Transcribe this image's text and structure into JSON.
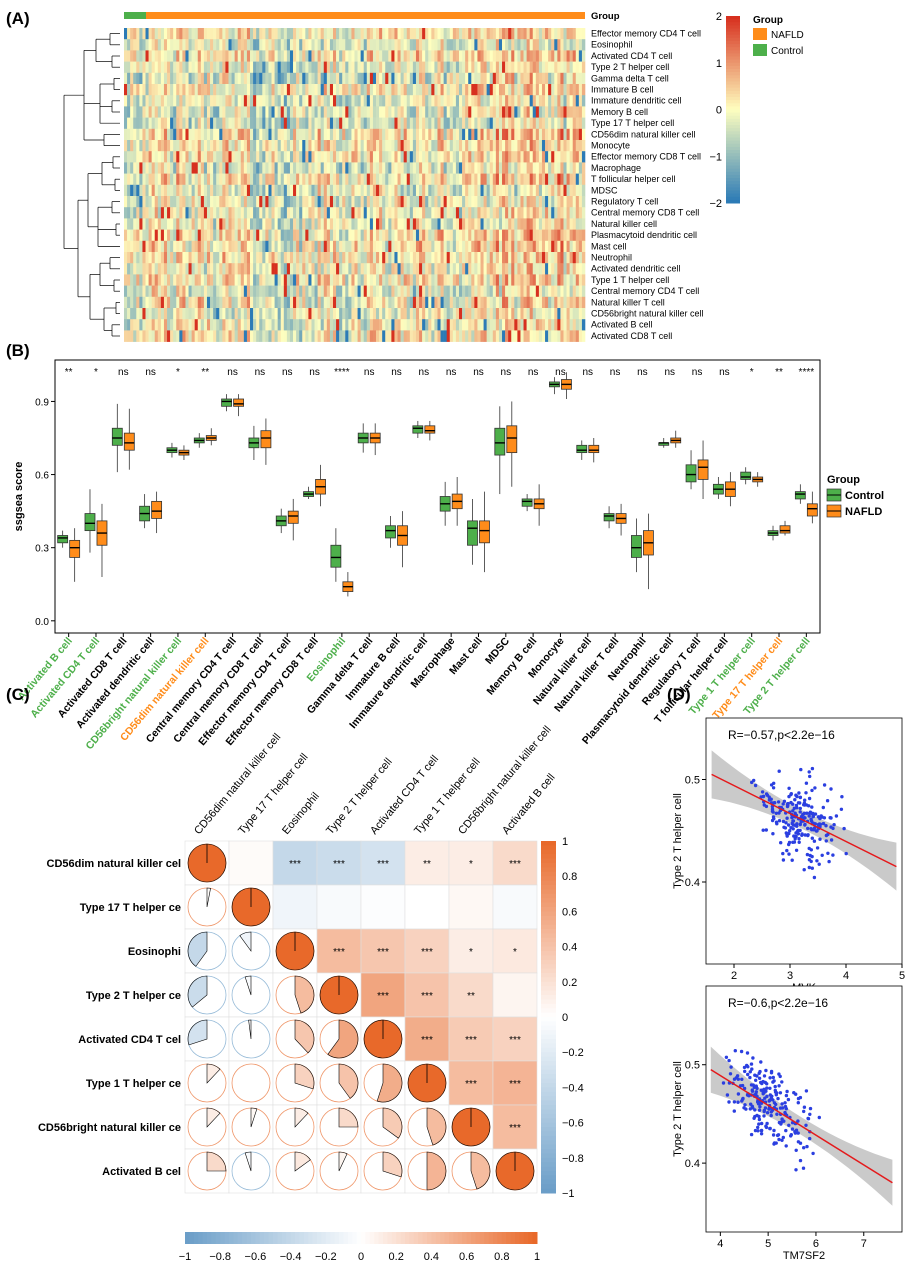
{
  "colors": {
    "control": "#4DAF4A",
    "nafld": "#FF8C1A",
    "heat_high": "#D7301F",
    "heat_mid": "#FFFFBF",
    "heat_low": "#2C7BB6",
    "corr_pos": "#E8692A",
    "corr_neg": "#6B9EC8",
    "fit_line": "#E41A1C",
    "points": "#2B3FE0"
  },
  "chart_data": [
    {
      "panel": "(A)",
      "type": "heatmap",
      "group_label": "Group",
      "rows": [
        "Effector memory CD4 T cell",
        "Eosinophil",
        "Activated CD4 T cell",
        "Type 2 T helper cell",
        "Gamma delta T cell",
        "Immature  B cell",
        "Immature dendritic cell",
        "Memory B cell",
        "Type 17 T helper cell",
        "CD56dim natural killer cell",
        "Monocyte",
        "Effector memory CD8 T cell",
        "Macrophage",
        "T follicular helper cell",
        "MDSC",
        "Regulatory T cell",
        "Central memory CD8 T cell",
        "Natural killer cell",
        "Plasmacytoid dendritic cell",
        "Mast cell",
        "Neutrophil",
        "Activated dendritic cell",
        "Type 1 T helper cell",
        "Central memory CD4 T cell",
        "Natural killer T cell",
        "CD56bright natural killer cell",
        "Activated B cell",
        "Activated CD8 T cell"
      ],
      "colorbar_ticks": [
        "2",
        "1",
        "0",
        "−1",
        "−2"
      ],
      "legend_title": "Group",
      "legend": [
        "NAFLD",
        "Control"
      ]
    },
    {
      "panel": "(B)",
      "type": "box",
      "ylabel": "ssgsea score",
      "yticks": [
        "0.0",
        "0.3",
        "0.6",
        "0.9"
      ],
      "ylim": [
        -0.05,
        1.07
      ],
      "legend_title": "Group",
      "legend": [
        "Control",
        "NAFLD"
      ],
      "categories": [
        {
          "name": "Activated B cell",
          "sig": "**",
          "color": "control",
          "c": [
            0.3,
            0.32,
            0.34,
            0.35,
            0.37
          ],
          "n": [
            0.16,
            0.26,
            0.3,
            0.33,
            0.38
          ]
        },
        {
          "name": "Activated CD4 T cell",
          "sig": "*",
          "color": "control",
          "c": [
            0.28,
            0.37,
            0.4,
            0.44,
            0.54
          ],
          "n": [
            0.18,
            0.31,
            0.36,
            0.41,
            0.48
          ]
        },
        {
          "name": "Activated CD8 T cell",
          "sig": "ns",
          "color": "black",
          "c": [
            0.61,
            0.72,
            0.75,
            0.79,
            0.89
          ],
          "n": [
            0.62,
            0.7,
            0.73,
            0.77,
            0.87
          ]
        },
        {
          "name": "Activated dendritic cell",
          "sig": "ns",
          "color": "black",
          "c": [
            0.38,
            0.41,
            0.44,
            0.47,
            0.52
          ],
          "n": [
            0.36,
            0.42,
            0.45,
            0.49,
            0.53
          ]
        },
        {
          "name": "CD56bright natural killer cell",
          "sig": "*",
          "color": "control",
          "c": [
            0.67,
            0.69,
            0.7,
            0.71,
            0.73
          ],
          "n": [
            0.66,
            0.68,
            0.69,
            0.7,
            0.72
          ]
        },
        {
          "name": "CD56dim natural killer cell",
          "sig": "**",
          "color": "nafld",
          "c": [
            0.71,
            0.73,
            0.74,
            0.75,
            0.77
          ],
          "n": [
            0.72,
            0.74,
            0.75,
            0.76,
            0.79
          ]
        },
        {
          "name": "Central memory CD4 T cell",
          "sig": "ns",
          "color": "black",
          "c": [
            0.86,
            0.88,
            0.9,
            0.91,
            0.93
          ],
          "n": [
            0.84,
            0.88,
            0.89,
            0.91,
            0.93
          ]
        },
        {
          "name": "Central memory CD8 T cell",
          "sig": "ns",
          "color": "black",
          "c": [
            0.66,
            0.71,
            0.73,
            0.75,
            0.8
          ],
          "n": [
            0.64,
            0.71,
            0.75,
            0.78,
            0.83
          ]
        },
        {
          "name": "Effector memory CD4 T cell",
          "sig": "ns",
          "color": "black",
          "c": [
            0.36,
            0.39,
            0.41,
            0.43,
            0.46
          ],
          "n": [
            0.33,
            0.4,
            0.43,
            0.45,
            0.5
          ]
        },
        {
          "name": "Effector memory CD8 T cell",
          "sig": "ns",
          "color": "black",
          "c": [
            0.5,
            0.51,
            0.52,
            0.53,
            0.55
          ],
          "n": [
            0.47,
            0.52,
            0.55,
            0.58,
            0.64
          ]
        },
        {
          "name": "Eosinophil",
          "sig": "****",
          "color": "control",
          "c": [
            0.16,
            0.22,
            0.26,
            0.31,
            0.38
          ],
          "n": [
            0.1,
            0.12,
            0.14,
            0.16,
            0.2
          ]
        },
        {
          "name": "Gamma delta T cell",
          "sig": "ns",
          "color": "black",
          "c": [
            0.69,
            0.73,
            0.75,
            0.77,
            0.81
          ],
          "n": [
            0.68,
            0.73,
            0.75,
            0.77,
            0.81
          ]
        },
        {
          "name": "Immature  B cell",
          "sig": "ns",
          "color": "black",
          "c": [
            0.3,
            0.34,
            0.37,
            0.39,
            0.43
          ],
          "n": [
            0.22,
            0.31,
            0.35,
            0.39,
            0.45
          ]
        },
        {
          "name": "Immature dendritic cell",
          "sig": "ns",
          "color": "black",
          "c": [
            0.75,
            0.77,
            0.79,
            0.8,
            0.82
          ],
          "n": [
            0.74,
            0.77,
            0.78,
            0.8,
            0.82
          ]
        },
        {
          "name": "Macrophage",
          "sig": "ns",
          "color": "black",
          "c": [
            0.39,
            0.45,
            0.48,
            0.51,
            0.57
          ],
          "n": [
            0.39,
            0.46,
            0.49,
            0.52,
            0.59
          ]
        },
        {
          "name": "Mast cell",
          "sig": "ns",
          "color": "black",
          "c": [
            0.23,
            0.31,
            0.38,
            0.41,
            0.5
          ],
          "n": [
            0.2,
            0.32,
            0.37,
            0.41,
            0.53
          ]
        },
        {
          "name": "MDSC",
          "sig": "ns",
          "color": "black",
          "c": [
            0.52,
            0.68,
            0.73,
            0.79,
            0.88
          ],
          "n": [
            0.55,
            0.69,
            0.75,
            0.8,
            0.9
          ]
        },
        {
          "name": "Memory B cell",
          "sig": "ns",
          "color": "black",
          "c": [
            0.45,
            0.47,
            0.49,
            0.5,
            0.52
          ],
          "n": [
            0.39,
            0.46,
            0.48,
            0.5,
            0.56
          ]
        },
        {
          "name": "Monocyte",
          "sig": "ns",
          "color": "black",
          "c": [
            0.93,
            0.96,
            0.97,
            0.98,
            1.0
          ],
          "n": [
            0.91,
            0.95,
            0.97,
            0.99,
            1.02
          ]
        },
        {
          "name": "Natural killer cell",
          "sig": "ns",
          "color": "black",
          "c": [
            0.66,
            0.69,
            0.7,
            0.72,
            0.74
          ],
          "n": [
            0.65,
            0.69,
            0.7,
            0.72,
            0.75
          ]
        },
        {
          "name": "Natural killer T cell",
          "sig": "ns",
          "color": "black",
          "c": [
            0.38,
            0.41,
            0.43,
            0.44,
            0.47
          ],
          "n": [
            0.35,
            0.4,
            0.42,
            0.44,
            0.48
          ]
        },
        {
          "name": "Neutrophil",
          "sig": "ns",
          "color": "black",
          "c": [
            0.2,
            0.26,
            0.3,
            0.35,
            0.42
          ],
          "n": [
            0.13,
            0.27,
            0.32,
            0.37,
            0.44
          ]
        },
        {
          "name": "Plasmacytoid dendritic cell",
          "sig": "ns",
          "color": "black",
          "c": [
            0.71,
            0.72,
            0.73,
            0.73,
            0.75
          ],
          "n": [
            0.71,
            0.73,
            0.74,
            0.75,
            0.78
          ]
        },
        {
          "name": "Regulatory T cell",
          "sig": "ns",
          "color": "black",
          "c": [
            0.54,
            0.57,
            0.6,
            0.64,
            0.7
          ],
          "n": [
            0.5,
            0.58,
            0.63,
            0.66,
            0.74
          ]
        },
        {
          "name": "T follicular helper cell",
          "sig": "ns",
          "color": "black",
          "c": [
            0.5,
            0.52,
            0.54,
            0.56,
            0.59
          ],
          "n": [
            0.47,
            0.51,
            0.54,
            0.57,
            0.61
          ]
        },
        {
          "name": "Type 1 T helper cell",
          "sig": "*",
          "color": "control",
          "c": [
            0.56,
            0.58,
            0.59,
            0.61,
            0.63
          ],
          "n": [
            0.55,
            0.57,
            0.58,
            0.59,
            0.61
          ]
        },
        {
          "name": "Type 17 T helper cell",
          "sig": "**",
          "color": "nafld",
          "c": [
            0.33,
            0.35,
            0.36,
            0.37,
            0.39
          ],
          "n": [
            0.35,
            0.36,
            0.37,
            0.39,
            0.41
          ]
        },
        {
          "name": "Type 2 T helper cell",
          "sig": "****",
          "color": "control",
          "c": [
            0.48,
            0.5,
            0.52,
            0.53,
            0.56
          ],
          "n": [
            0.4,
            0.43,
            0.46,
            0.48,
            0.53
          ]
        }
      ]
    },
    {
      "panel": "(C)",
      "type": "correlation",
      "labels": [
        "CD56dim natural killer cell",
        "Type 17 T helper cell",
        "Eosinophil",
        "Type 2 T helper cell",
        "Activated CD4 T cell",
        "Type 1 T helper cell",
        "CD56bright natural killer cell",
        "Activated B cell"
      ],
      "row_labels": [
        "CD56dim natural killer cel",
        "Type 17 T helper ce",
        "Eosinophi",
        "Type 2 T helper ce",
        "Activated CD4 T cel",
        "Type 1 T helper ce",
        "CD56bright natural killer ce",
        "Activated B cel"
      ],
      "matrix": [
        [
          1.0,
          0.03,
          -0.4,
          -0.36,
          -0.3,
          0.12,
          0.12,
          0.25
        ],
        [
          0.03,
          1.0,
          -0.1,
          -0.05,
          -0.02,
          0.0,
          0.05,
          -0.05
        ],
        [
          -0.4,
          -0.1,
          1.0,
          0.45,
          0.38,
          0.3,
          0.12,
          0.15
        ],
        [
          -0.36,
          -0.05,
          0.45,
          1.0,
          0.6,
          0.4,
          0.25,
          0.07
        ],
        [
          -0.3,
          -0.02,
          0.38,
          0.6,
          1.0,
          0.55,
          0.35,
          0.3
        ],
        [
          0.12,
          0.0,
          0.3,
          0.4,
          0.55,
          1.0,
          0.45,
          0.5
        ],
        [
          0.12,
          0.05,
          0.12,
          0.25,
          0.35,
          0.45,
          1.0,
          0.45
        ],
        [
          0.25,
          -0.05,
          0.15,
          0.07,
          0.3,
          0.5,
          0.45,
          1.0
        ]
      ],
      "stars": [
        [
          "",
          "",
          "***",
          "***",
          "***",
          "**",
          "*",
          "***"
        ],
        [
          "",
          "",
          "",
          "",
          "",
          "",
          "",
          ""
        ],
        [
          "",
          "",
          "",
          "***",
          "***",
          "***",
          "*",
          "*"
        ],
        [
          "",
          "",
          "",
          "",
          "***",
          "***",
          "**",
          ""
        ],
        [
          "",
          "",
          "",
          "",
          "",
          "***",
          "***",
          "***"
        ],
        [
          "",
          "",
          "",
          "",
          "",
          "",
          "***",
          "***"
        ],
        [
          "",
          "",
          "",
          "",
          "",
          "",
          "",
          "***"
        ],
        [
          "",
          "",
          "",
          "",
          "",
          "",
          "",
          ""
        ]
      ],
      "colorbar_ticks": [
        "1",
        "0.8",
        "0.6",
        "0.4",
        "0.2",
        "0",
        "−0.2",
        "−0.4",
        "−0.6",
        "−0.8",
        "−1"
      ],
      "xbar_ticks": [
        "−1",
        "−0.8",
        "−0.6",
        "−0.4",
        "−0.2",
        "0",
        "0.2",
        "0.4",
        "0.6",
        "0.8",
        "1"
      ]
    },
    {
      "panel": "(D)",
      "type": "scatter",
      "plots": [
        {
          "title": "R=−0.57,p<2.2e−16",
          "xlabel": "MVK",
          "ylabel": "Type 2 T helper cell",
          "xlim": [
            1.5,
            5.0
          ],
          "ylim": [
            0.32,
            0.56
          ],
          "xticks": [
            2,
            3,
            4,
            5
          ],
          "yticks": [
            0.4,
            0.5
          ],
          "fit": [
            [
              1.6,
              0.505
            ],
            [
              4.9,
              0.415
            ]
          ],
          "cx": 3.2,
          "sx": 0.65,
          "slope": -0.027,
          "noise": 0.035,
          "seed": 7
        },
        {
          "title": "R=−0.6,p<2.2e−16",
          "xlabel": "TM7SF2",
          "ylabel": "Type 2 T helper cell",
          "xlim": [
            3.7,
            7.8
          ],
          "ylim": [
            0.33,
            0.58
          ],
          "xticks": [
            4,
            5,
            6,
            7
          ],
          "yticks": [
            0.4,
            0.5
          ],
          "fit": [
            [
              3.8,
              0.495
            ],
            [
              7.6,
              0.38
            ]
          ],
          "cx": 5.0,
          "sx": 0.75,
          "slope": -0.03,
          "noise": 0.034,
          "seed": 13
        }
      ]
    }
  ]
}
